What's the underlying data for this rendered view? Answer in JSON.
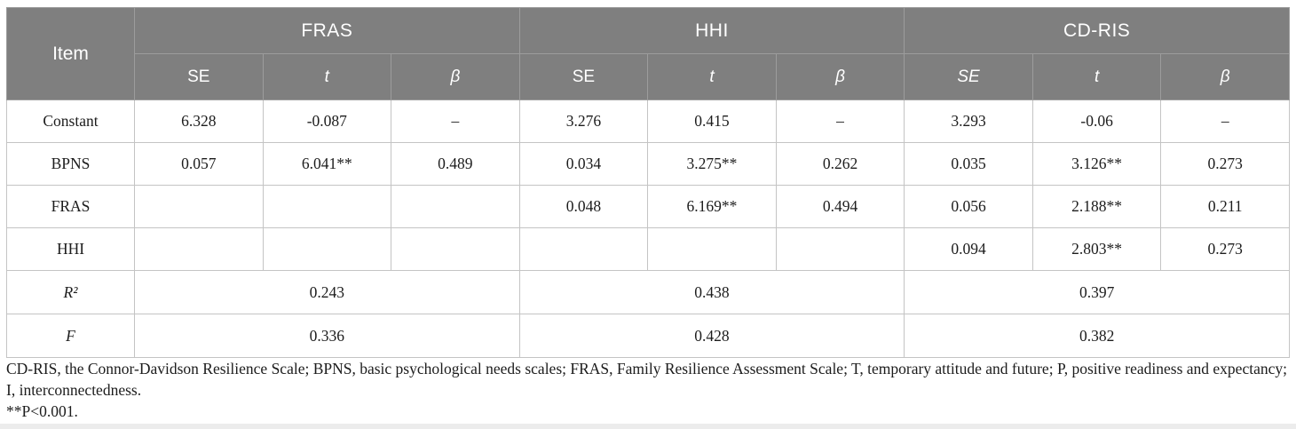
{
  "colors": {
    "header_bg": "#7f7f7f",
    "header_text": "#ffffff",
    "header_divider": "#9c9c9c",
    "body_border": "#c4c4c4",
    "body_text": "#1c1c1c"
  },
  "table": {
    "header": {
      "item": "Item",
      "groups": [
        {
          "label": "FRAS"
        },
        {
          "label": "HHI"
        },
        {
          "label": "CD-RIS"
        }
      ],
      "subcols": [
        "SE",
        "t",
        "β",
        "SE",
        "t",
        "β",
        "SE",
        "t",
        "β"
      ]
    },
    "rows": [
      {
        "item": "Constant",
        "cells": [
          "6.328",
          "-0.087",
          "–",
          "3.276",
          "0.415",
          "–",
          "3.293",
          "-0.06",
          "–"
        ]
      },
      {
        "item": "BPNS",
        "cells": [
          "0.057",
          "6.041**",
          "0.489",
          "0.034",
          "3.275**",
          "0.262",
          "0.035",
          "3.126**",
          "0.273"
        ]
      },
      {
        "item": "FRAS",
        "cells": [
          "",
          "",
          "",
          "0.048",
          "6.169**",
          "0.494",
          "0.056",
          "2.188**",
          "0.211"
        ]
      },
      {
        "item": "HHI",
        "cells": [
          "",
          "",
          "",
          "",
          "",
          "",
          "0.094",
          "2.803**",
          "0.273"
        ]
      }
    ],
    "summary_rows": [
      {
        "item": "R²",
        "values": [
          "0.243",
          "0.438",
          "0.397"
        ]
      },
      {
        "item": "F",
        "values": [
          "0.336",
          "0.428",
          "0.382"
        ]
      }
    ]
  },
  "footnote": {
    "abbreviations": "CD-RIS, the Connor-Davidson Resilience Scale; BPNS, basic psychological needs scales; FRAS, Family Resilience Assessment Scale; T, temporary attitude and future; P, positive readiness and expectancy; I, interconnectedness.",
    "significance": "**P<0.001."
  }
}
